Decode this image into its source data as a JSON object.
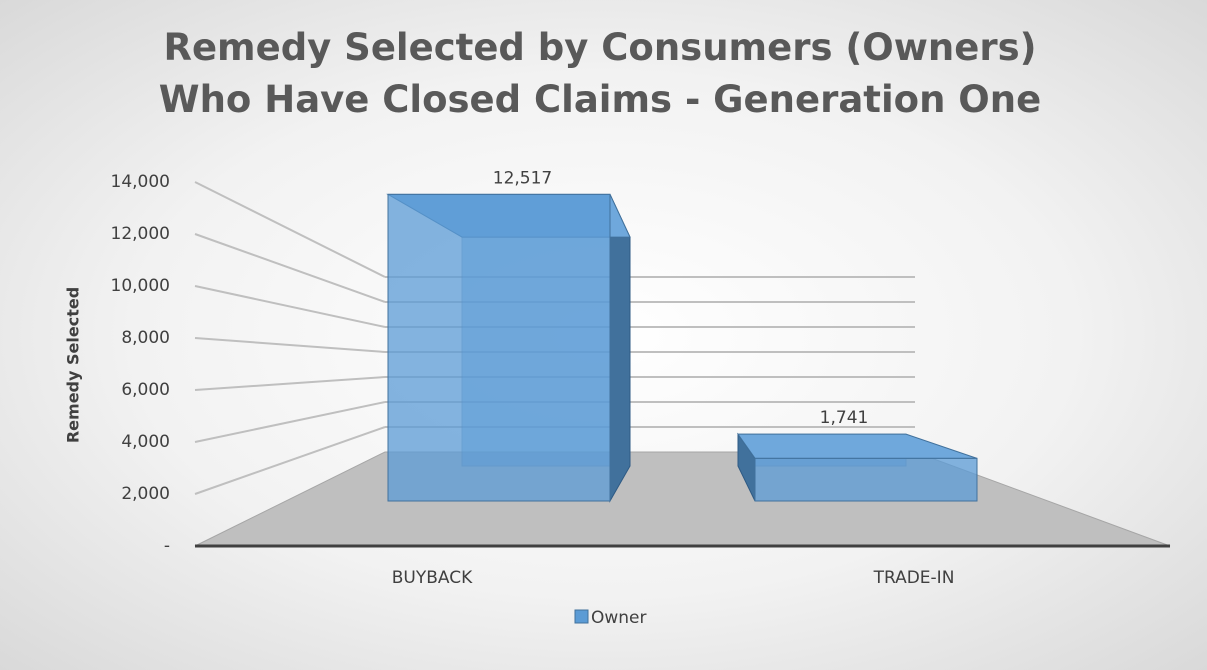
{
  "chart_data": {
    "type": "bar3d",
    "title": "Remedy Selected by Consumers (Owners) Who Have Closed Claims - Generation One",
    "y_label": "Remedy Selected",
    "categories": [
      "BUYBACK",
      "TRADE-IN"
    ],
    "series": [
      {
        "name": "Owner",
        "color": "#5b9bd5",
        "values": [
          12517,
          1741
        ],
        "value_labels": [
          "12,517",
          "1,741"
        ]
      }
    ],
    "ylim": [
      0,
      14000
    ],
    "yticks": [
      {
        "value": 0,
        "label": "-"
      },
      {
        "value": 2000,
        "label": "2,000"
      },
      {
        "value": 4000,
        "label": "4,000"
      },
      {
        "value": 6000,
        "label": "6,000"
      },
      {
        "value": 8000,
        "label": "8,000"
      },
      {
        "value": 10000,
        "label": "10,000"
      },
      {
        "value": 12000,
        "label": "12,000"
      },
      {
        "value": 14000,
        "label": "14,000"
      }
    ],
    "grid": true,
    "legend": "bottom"
  }
}
